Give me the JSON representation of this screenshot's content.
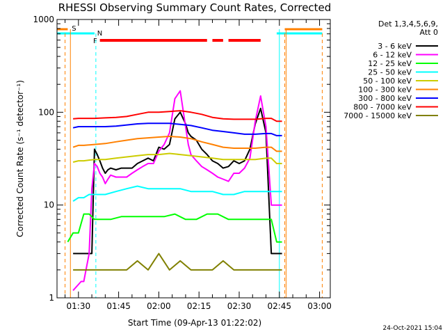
{
  "chart_data": {
    "type": "line",
    "title": "RHESSI Observing Summary Count Rates, Corrected",
    "xlabel": "Start Time (09-Apr-13 01:22:02)",
    "ylabel": "Corrected Count Rate (s⁻¹ detector⁻¹)",
    "x_unit": "minutes after 01:22:02",
    "xlim": [
      0,
      102
    ],
    "ylim": [
      1,
      1000
    ],
    "y_scale": "log",
    "x_ticks": [
      {
        "x": 8,
        "label": "01:30"
      },
      {
        "x": 23,
        "label": "01:45"
      },
      {
        "x": 38,
        "label": "02:00"
      },
      {
        "x": 53,
        "label": "02:15"
      },
      {
        "x": 68,
        "label": "02:30"
      },
      {
        "x": 83,
        "label": "02:45"
      },
      {
        "x": 98,
        "label": "03:00"
      }
    ],
    "y_ticks": [
      {
        "y": 1,
        "label": "1"
      },
      {
        "y": 10,
        "label": "10"
      },
      {
        "y": 100,
        "label": "100"
      },
      {
        "y": 1000,
        "label": "1000"
      }
    ],
    "legend_title": [
      "Det 1,3,4,5,6,9,",
      "Att 0"
    ],
    "legend_position": "right",
    "series": [
      {
        "name": "3 - 6 keV",
        "color": "#000000",
        "x": [
          6,
          9,
          10,
          12,
          13,
          14,
          15,
          16,
          17,
          18,
          19,
          20,
          22,
          24,
          26,
          28,
          30,
          32,
          34,
          36,
          38,
          40,
          42,
          44,
          46,
          48,
          49,
          50,
          52,
          54,
          56,
          58,
          60,
          62,
          64,
          66,
          68,
          70,
          72,
          74,
          76,
          78,
          80,
          81,
          82,
          83,
          84
        ],
        "y": [
          3,
          3,
          3,
          3,
          3,
          40,
          35,
          30,
          25,
          22,
          24,
          25,
          24,
          25,
          25,
          25,
          28,
          30,
          32,
          30,
          42,
          40,
          45,
          85,
          100,
          75,
          60,
          55,
          50,
          40,
          35,
          30,
          28,
          25,
          26,
          30,
          28,
          30,
          40,
          75,
          110,
          60,
          3,
          3,
          3,
          3,
          3
        ]
      },
      {
        "name": "6 - 12 keV",
        "color": "#ff00ff",
        "x": [
          6,
          9,
          10,
          12,
          13,
          14,
          15,
          16,
          17,
          18,
          19,
          20,
          22,
          24,
          26,
          28,
          30,
          32,
          34,
          36,
          38,
          40,
          42,
          44,
          46,
          48,
          49,
          50,
          52,
          54,
          56,
          58,
          60,
          62,
          64,
          66,
          68,
          70,
          72,
          74,
          76,
          78,
          80,
          81,
          82,
          83,
          84
        ],
        "y": [
          1.2,
          1.5,
          1.5,
          3,
          15,
          28,
          26,
          22,
          20,
          17,
          19,
          21,
          20,
          20,
          20,
          22,
          24,
          26,
          28,
          28,
          38,
          45,
          60,
          140,
          170,
          70,
          45,
          35,
          30,
          26,
          24,
          22,
          20,
          19,
          18,
          22,
          22,
          25,
          32,
          80,
          150,
          70,
          10,
          10,
          10,
          10,
          10
        ]
      },
      {
        "name": "12 - 25 keV",
        "color": "#00ff00",
        "x": [
          4,
          6,
          8,
          10,
          12,
          14,
          16,
          18,
          20,
          24,
          28,
          32,
          36,
          40,
          44,
          48,
          52,
          56,
          60,
          64,
          68,
          72,
          76,
          78,
          80,
          82,
          84
        ],
        "y": [
          4,
          5,
          5,
          8,
          8,
          7,
          7,
          7,
          7,
          7.5,
          7.5,
          7.5,
          7.5,
          7.5,
          8,
          7,
          7,
          8,
          8,
          7,
          7,
          7,
          7,
          7,
          7,
          4,
          4
        ]
      },
      {
        "name": "25 - 50 keV",
        "color": "#00ffff",
        "x": [
          6,
          8,
          10,
          12,
          14,
          18,
          22,
          26,
          30,
          34,
          38,
          42,
          46,
          50,
          54,
          58,
          62,
          66,
          70,
          74,
          78,
          80,
          82,
          84
        ],
        "y": [
          11,
          12,
          12,
          13,
          13,
          13,
          14,
          15,
          16,
          15,
          15,
          15,
          15,
          14,
          14,
          14,
          13,
          13,
          14,
          14,
          14,
          14,
          14,
          14
        ]
      },
      {
        "name": "50 - 100 keV",
        "color": "#cccc00",
        "x": [
          6,
          8,
          10,
          14,
          18,
          22,
          26,
          30,
          34,
          38,
          42,
          46,
          50,
          54,
          58,
          62,
          66,
          70,
          74,
          78,
          80,
          82,
          84
        ],
        "y": [
          29,
          30,
          30,
          31,
          31,
          32,
          33,
          34,
          35,
          35,
          36,
          35,
          34,
          33,
          32,
          31,
          31,
          31,
          31,
          32,
          32,
          28,
          28
        ]
      },
      {
        "name": "100 - 300 keV",
        "color": "#ff8000",
        "x": [
          6,
          8,
          10,
          14,
          18,
          22,
          26,
          30,
          34,
          38,
          42,
          46,
          50,
          54,
          58,
          62,
          66,
          70,
          74,
          78,
          80,
          82,
          84
        ],
        "y": [
          42,
          44,
          44,
          45,
          46,
          48,
          50,
          52,
          53,
          54,
          55,
          54,
          52,
          48,
          45,
          42,
          41,
          41,
          41,
          42,
          42,
          38,
          38
        ]
      },
      {
        "name": "300 - 800 keV",
        "color": "#0000ff",
        "x": [
          6,
          8,
          10,
          14,
          18,
          22,
          26,
          30,
          34,
          38,
          42,
          46,
          50,
          54,
          58,
          62,
          66,
          70,
          74,
          78,
          80,
          82,
          84
        ],
        "y": [
          68,
          70,
          70,
          70,
          70,
          71,
          73,
          75,
          76,
          76,
          76,
          74,
          72,
          68,
          64,
          62,
          60,
          58,
          58,
          59,
          59,
          56,
          56
        ]
      },
      {
        "name": "800 - 7000 keV",
        "color": "#ff0000",
        "x": [
          6,
          8,
          10,
          14,
          18,
          22,
          26,
          30,
          34,
          38,
          42,
          46,
          50,
          54,
          58,
          62,
          66,
          70,
          74,
          78,
          80,
          82,
          84
        ],
        "y": [
          85,
          86,
          86,
          86,
          87,
          88,
          90,
          95,
          100,
          100,
          102,
          104,
          100,
          95,
          88,
          85,
          84,
          84,
          84,
          86,
          86,
          80,
          80
        ]
      },
      {
        "name": "7000 - 15000 keV",
        "color": "#808000",
        "x": [
          6,
          8,
          10,
          14,
          18,
          22,
          26,
          30,
          34,
          38,
          42,
          46,
          50,
          54,
          58,
          62,
          66,
          70,
          74,
          78,
          80,
          82,
          84
        ],
        "y": [
          2,
          2,
          2,
          2,
          2,
          2,
          2,
          2.5,
          2,
          3,
          2,
          2.5,
          2,
          2,
          2,
          2.5,
          2,
          2,
          2,
          2,
          2,
          2,
          2
        ]
      }
    ],
    "annotations": [
      {
        "text": "S",
        "color": "#ff8000"
      },
      {
        "text": "N",
        "color": "#00ffff"
      },
      {
        "text": "F",
        "color": "#ff0000"
      }
    ],
    "timestamp": "24-Oct-2021 15:04"
  }
}
